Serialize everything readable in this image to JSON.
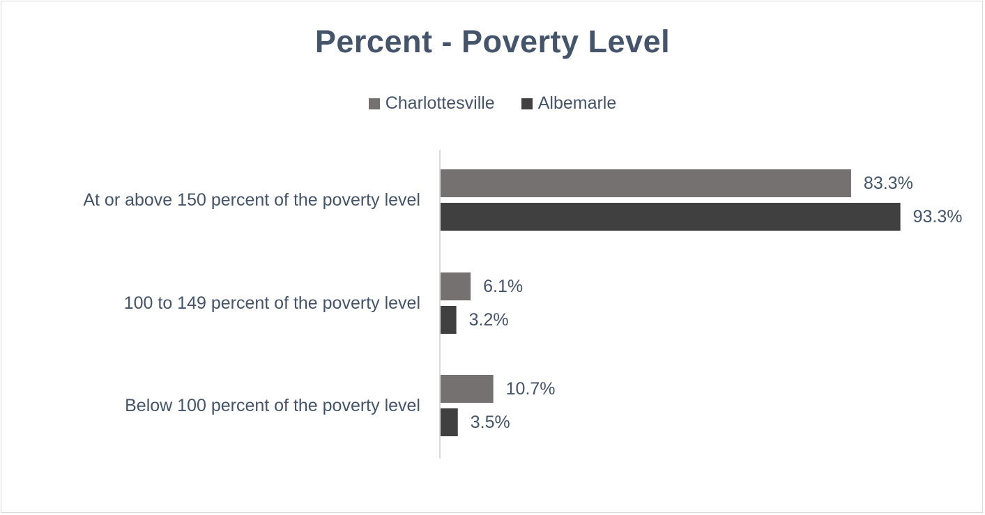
{
  "chart_data": {
    "type": "bar",
    "orientation": "horizontal",
    "title": "Percent - Poverty Level",
    "categories": [
      "At or above 150 percent of the poverty level",
      "100 to 149 percent of the poverty level",
      "Below 100 percent of the poverty level"
    ],
    "series": [
      {
        "name": "Charlottesville",
        "color": "#767171",
        "values": [
          83.3,
          6.1,
          10.7
        ],
        "labels": [
          "83.3%",
          "6.1%",
          "10.7%"
        ]
      },
      {
        "name": "Albemarle",
        "color": "#404040",
        "values": [
          93.3,
          3.2,
          3.5
        ],
        "labels": [
          "93.3%",
          "3.2%",
          "3.5%"
        ]
      }
    ],
    "xlim": [
      0,
      100
    ],
    "grid": false,
    "legend_position": "top"
  }
}
